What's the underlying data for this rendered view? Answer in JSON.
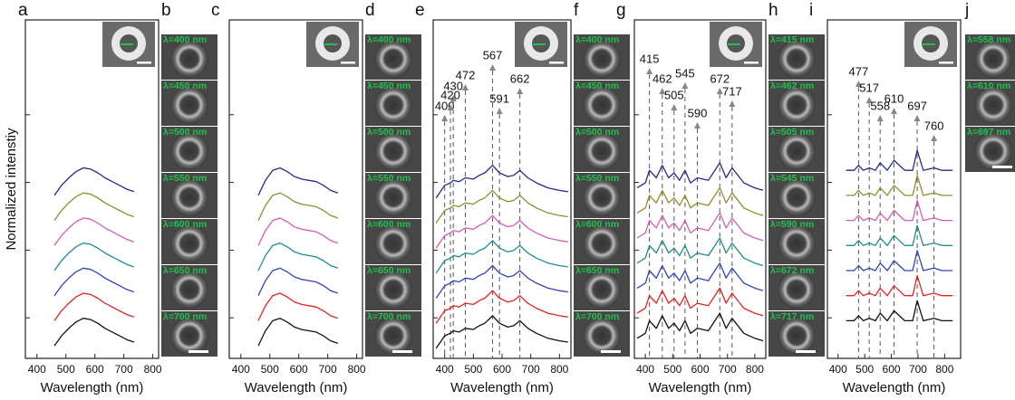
{
  "chart_data": [
    {
      "type": "line",
      "label": "a",
      "xlabel": "Wavelength (nm)",
      "ylabel": "Normalized intenstiy",
      "x": [
        460,
        485,
        510,
        535,
        560,
        585,
        610,
        635,
        660,
        685,
        710,
        735
      ],
      "xlim": [
        360,
        820
      ],
      "ylim": [
        0,
        13.5
      ],
      "xticks": [
        400,
        500,
        600,
        700,
        800
      ],
      "series": [
        {
          "color": "#262a8a",
          "values": [
            6.5,
            6.9,
            7.2,
            7.45,
            7.6,
            7.55,
            7.4,
            7.2,
            7.05,
            6.9,
            6.75,
            6.65
          ]
        },
        {
          "color": "#8e8e2e",
          "values": [
            5.5,
            5.9,
            6.2,
            6.45,
            6.6,
            6.55,
            6.4,
            6.2,
            6.05,
            5.9,
            5.75,
            5.65
          ]
        },
        {
          "color": "#d45db8",
          "values": [
            4.5,
            4.9,
            5.2,
            5.45,
            5.6,
            5.55,
            5.4,
            5.2,
            5.05,
            4.9,
            4.75,
            4.65
          ]
        },
        {
          "color": "#1b8f8c",
          "values": [
            3.5,
            3.9,
            4.2,
            4.45,
            4.6,
            4.55,
            4.4,
            4.2,
            4.05,
            3.9,
            3.75,
            3.65
          ]
        },
        {
          "color": "#3343b8",
          "values": [
            2.5,
            2.9,
            3.2,
            3.45,
            3.6,
            3.55,
            3.4,
            3.2,
            3.05,
            2.9,
            2.75,
            2.65
          ]
        },
        {
          "color": "#e5231f",
          "values": [
            1.5,
            1.9,
            2.2,
            2.45,
            2.6,
            2.55,
            2.4,
            2.2,
            2.05,
            1.9,
            1.75,
            1.65
          ]
        },
        {
          "color": "#111111",
          "values": [
            0.5,
            0.9,
            1.2,
            1.45,
            1.6,
            1.55,
            1.4,
            1.2,
            1.05,
            0.9,
            0.75,
            0.65
          ]
        }
      ]
    },
    {
      "type": "line",
      "label": "c",
      "xlabel": "Wavelength (nm)",
      "x": [
        460,
        485,
        510,
        535,
        560,
        585,
        610,
        635,
        660,
        685,
        710,
        735
      ],
      "xlim": [
        360,
        820
      ],
      "ylim": [
        0,
        13.5
      ],
      "xticks": [
        400,
        500,
        600,
        700,
        800
      ],
      "series": [
        {
          "color": "#262a8a",
          "values": [
            6.5,
            7.1,
            7.5,
            7.6,
            7.45,
            7.25,
            7.15,
            7.1,
            7.05,
            6.9,
            6.7,
            6.6
          ]
        },
        {
          "color": "#8e8e2e",
          "values": [
            5.5,
            6.1,
            6.5,
            6.6,
            6.45,
            6.25,
            6.15,
            6.1,
            6.05,
            5.9,
            5.7,
            5.6
          ]
        },
        {
          "color": "#d45db8",
          "values": [
            4.5,
            5.1,
            5.5,
            5.6,
            5.45,
            5.25,
            5.15,
            5.1,
            5.05,
            4.9,
            4.7,
            4.6
          ]
        },
        {
          "color": "#1b8f8c",
          "values": [
            3.5,
            4.1,
            4.5,
            4.6,
            4.45,
            4.25,
            4.15,
            4.1,
            4.05,
            3.9,
            3.7,
            3.6
          ]
        },
        {
          "color": "#3343b8",
          "values": [
            2.5,
            3.1,
            3.5,
            3.6,
            3.45,
            3.25,
            3.15,
            3.1,
            3.05,
            2.9,
            2.7,
            2.6
          ]
        },
        {
          "color": "#e5231f",
          "values": [
            1.5,
            2.1,
            2.5,
            2.6,
            2.45,
            2.25,
            2.15,
            2.1,
            2.05,
            1.9,
            1.7,
            1.6
          ]
        },
        {
          "color": "#111111",
          "values": [
            0.5,
            1.1,
            1.5,
            1.6,
            1.45,
            1.25,
            1.15,
            1.1,
            1.05,
            0.9,
            0.7,
            0.6
          ]
        }
      ]
    },
    {
      "type": "line",
      "label": "e",
      "xlabel": "Wavelength (nm)",
      "x": [
        370,
        400,
        420,
        430,
        450,
        472,
        500,
        520,
        540,
        567,
        591,
        620,
        640,
        662,
        690,
        720,
        760,
        800,
        830
      ],
      "xlim": [
        360,
        840
      ],
      "ylim": [
        0,
        13.5
      ],
      "xticks": [
        400,
        500,
        600,
        700,
        800
      ],
      "peaks": [
        400,
        430,
        472,
        420,
        567,
        591,
        662
      ],
      "series": [
        {
          "color": "#262a8a",
          "values": [
            6.4,
            6.9,
            7.0,
            7.1,
            7.05,
            7.2,
            7.15,
            7.3,
            7.4,
            7.7,
            7.4,
            7.25,
            7.3,
            7.5,
            7.2,
            7.0,
            6.8,
            6.7,
            6.65
          ]
        },
        {
          "color": "#8e8e2e",
          "values": [
            5.4,
            5.9,
            6.0,
            6.1,
            6.05,
            6.2,
            6.15,
            6.3,
            6.4,
            6.7,
            6.4,
            6.25,
            6.3,
            6.5,
            6.2,
            6.0,
            5.8,
            5.7,
            5.65
          ]
        },
        {
          "color": "#d45db8",
          "values": [
            4.4,
            4.9,
            5.0,
            5.1,
            5.05,
            5.2,
            5.15,
            5.3,
            5.4,
            5.7,
            5.4,
            5.25,
            5.3,
            5.5,
            5.2,
            5.0,
            4.8,
            4.7,
            4.65
          ]
        },
        {
          "color": "#1b8f8c",
          "values": [
            3.4,
            3.9,
            4.0,
            4.1,
            4.05,
            4.2,
            4.15,
            4.3,
            4.4,
            4.7,
            4.4,
            4.25,
            4.3,
            4.5,
            4.2,
            4.0,
            3.8,
            3.7,
            3.65
          ]
        },
        {
          "color": "#3343b8",
          "values": [
            2.4,
            2.9,
            3.0,
            3.1,
            3.05,
            3.2,
            3.15,
            3.3,
            3.4,
            3.7,
            3.4,
            3.25,
            3.3,
            3.5,
            3.2,
            3.0,
            2.8,
            2.7,
            2.65
          ]
        },
        {
          "color": "#e5231f",
          "values": [
            1.4,
            1.9,
            2.0,
            2.1,
            2.05,
            2.2,
            2.15,
            2.3,
            2.4,
            2.7,
            2.4,
            2.25,
            2.3,
            2.5,
            2.2,
            2.0,
            1.8,
            1.7,
            1.65
          ]
        },
        {
          "color": "#111111",
          "values": [
            0.4,
            0.9,
            1.0,
            1.1,
            1.05,
            1.2,
            1.15,
            1.3,
            1.4,
            1.7,
            1.4,
            1.25,
            1.3,
            1.5,
            1.2,
            1.0,
            0.8,
            0.7,
            0.65
          ]
        }
      ]
    },
    {
      "type": "line",
      "label": "g",
      "xlabel": "Wavelength (nm)",
      "x": [
        370,
        400,
        415,
        440,
        462,
        485,
        505,
        525,
        545,
        565,
        590,
        630,
        672,
        695,
        717,
        760,
        800,
        830
      ],
      "xlim": [
        360,
        840
      ],
      "ylim": [
        0,
        13.5
      ],
      "xticks": [
        400,
        500,
        600,
        700,
        800
      ],
      "peaks": [
        415,
        462,
        505,
        545,
        590,
        672,
        717
      ],
      "series": [
        {
          "color": "#262a8a",
          "values": [
            6.8,
            7.0,
            7.5,
            7.2,
            7.7,
            7.2,
            7.4,
            7.1,
            7.5,
            7.0,
            7.2,
            7.1,
            7.8,
            7.2,
            7.6,
            7.0,
            6.8,
            6.7
          ]
        },
        {
          "color": "#8e8e2e",
          "values": [
            5.8,
            6.0,
            6.5,
            6.2,
            6.7,
            6.2,
            6.4,
            6.1,
            6.5,
            6.0,
            6.2,
            6.1,
            6.8,
            6.2,
            6.6,
            6.0,
            5.8,
            5.7
          ]
        },
        {
          "color": "#d45db8",
          "values": [
            4.8,
            5.0,
            5.5,
            5.2,
            5.7,
            5.2,
            5.4,
            5.1,
            5.5,
            5.0,
            5.2,
            5.1,
            5.8,
            5.2,
            5.6,
            5.0,
            4.8,
            4.7
          ]
        },
        {
          "color": "#1b8f8c",
          "values": [
            3.8,
            4.0,
            4.5,
            4.2,
            4.7,
            4.2,
            4.4,
            4.1,
            4.5,
            4.0,
            4.2,
            4.1,
            4.8,
            4.2,
            4.6,
            4.0,
            3.8,
            3.7
          ]
        },
        {
          "color": "#3343b8",
          "values": [
            2.8,
            3.0,
            3.5,
            3.2,
            3.7,
            3.2,
            3.4,
            3.1,
            3.5,
            3.0,
            3.2,
            3.1,
            3.8,
            3.2,
            3.6,
            3.0,
            2.8,
            2.7
          ]
        },
        {
          "color": "#e5231f",
          "values": [
            1.8,
            2.0,
            2.5,
            2.2,
            2.7,
            2.2,
            2.4,
            2.1,
            2.5,
            2.0,
            2.2,
            2.1,
            2.8,
            2.2,
            2.6,
            2.0,
            1.8,
            1.7
          ]
        },
        {
          "color": "#111111",
          "values": [
            0.8,
            1.0,
            1.5,
            1.2,
            1.7,
            1.2,
            1.4,
            1.1,
            1.5,
            1.0,
            1.2,
            1.1,
            1.8,
            1.2,
            1.6,
            1.0,
            0.8,
            0.7
          ]
        }
      ]
    },
    {
      "type": "line",
      "label": "i",
      "xlabel": "Wavelength (nm)",
      "x": [
        430,
        460,
        477,
        495,
        517,
        540,
        558,
        585,
        610,
        650,
        680,
        697,
        720,
        760,
        790,
        830
      ],
      "xlim": [
        360,
        860
      ],
      "ylim": [
        0,
        13.5
      ],
      "xticks": [
        400,
        500,
        600,
        700,
        800
      ],
      "peaks": [
        477,
        517,
        558,
        610,
        697,
        760
      ],
      "series": [
        {
          "color": "#262a8a",
          "values": [
            7.5,
            7.5,
            7.7,
            7.5,
            7.6,
            7.5,
            7.8,
            7.5,
            7.9,
            7.5,
            7.5,
            8.3,
            7.5,
            7.6,
            7.5,
            7.5
          ]
        },
        {
          "color": "#8e8e2e",
          "values": [
            6.5,
            6.5,
            6.7,
            6.5,
            6.6,
            6.5,
            6.8,
            6.5,
            6.9,
            6.5,
            6.5,
            7.3,
            6.5,
            6.6,
            6.5,
            6.5
          ]
        },
        {
          "color": "#d45db8",
          "values": [
            5.5,
            5.5,
            5.7,
            5.5,
            5.6,
            5.5,
            5.8,
            5.5,
            5.9,
            5.5,
            5.5,
            6.3,
            5.5,
            5.6,
            5.5,
            5.5
          ]
        },
        {
          "color": "#1b8f8c",
          "values": [
            4.5,
            4.5,
            4.7,
            4.5,
            4.6,
            4.5,
            4.8,
            4.5,
            4.9,
            4.5,
            4.5,
            5.3,
            4.5,
            4.6,
            4.5,
            4.5
          ]
        },
        {
          "color": "#3343b8",
          "values": [
            3.5,
            3.5,
            3.7,
            3.5,
            3.6,
            3.5,
            3.8,
            3.5,
            3.9,
            3.5,
            3.5,
            4.3,
            3.5,
            3.6,
            3.5,
            3.5
          ]
        },
        {
          "color": "#e5231f",
          "values": [
            2.5,
            2.5,
            2.7,
            2.5,
            2.6,
            2.5,
            2.8,
            2.5,
            2.9,
            2.5,
            2.5,
            3.3,
            2.5,
            2.6,
            2.5,
            2.5
          ]
        },
        {
          "color": "#111111",
          "values": [
            1.5,
            1.5,
            1.7,
            1.5,
            1.6,
            1.5,
            1.8,
            1.5,
            1.9,
            1.5,
            1.5,
            2.3,
            1.5,
            1.6,
            1.5,
            1.5
          ]
        }
      ]
    }
  ],
  "image_panels": [
    {
      "label": "b",
      "captions": [
        "λ=400 nm",
        "λ=450 nm",
        "λ=500 nm",
        "λ=550 nm",
        "λ=600 nm",
        "λ=650 nm",
        "λ=700 nm"
      ]
    },
    {
      "label": "d",
      "captions": [
        "λ=400 nm",
        "λ=450 nm",
        "λ=500 nm",
        "λ=550 nm",
        "λ=600 nm",
        "λ=650 nm",
        "λ=700 nm"
      ]
    },
    {
      "label": "f",
      "captions": [
        "λ=400 nm",
        "λ=450 nm",
        "λ=500 nm",
        "λ=550 nm",
        "λ=600 nm",
        "λ=650 nm",
        "λ=700 nm"
      ]
    },
    {
      "label": "h",
      "captions": [
        "λ=415 nm",
        "λ=462 nm",
        "λ=505 nm",
        "λ=545 nm",
        "λ=590 nm",
        "λ=672 nm",
        "λ=717 nm"
      ]
    },
    {
      "label": "j",
      "captions": [
        "λ=558 nm",
        "λ=610 nm",
        "λ=697 nm"
      ]
    }
  ]
}
